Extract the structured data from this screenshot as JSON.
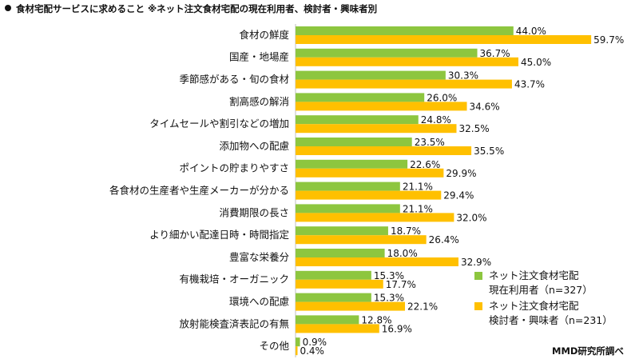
{
  "title": "食材宅配サービスに求めること ※ネット注文食材宅配の現在利用者、検討者・興味者別",
  "credit": "MMD研究所調べ",
  "legend": {
    "current": {
      "line1": "ネット注文食材宅配",
      "line2": "現在利用者（n=327）"
    },
    "considering": {
      "line1": "ネット注文食材宅配",
      "line2": "検討者・興味者（n=231）"
    }
  },
  "colors": {
    "current": "#8DC63F",
    "considering": "#FFC000"
  },
  "chart_data": {
    "type": "bar",
    "orientation": "horizontal",
    "categories": [
      "食材の鮮度",
      "国産・地場産",
      "季節感がある・旬の食材",
      "割高感の解消",
      "タイムセールや割引などの増加",
      "添加物への配慮",
      "ポイントの貯まりやすさ",
      "各食材の生産者や生産メーカーが分かる",
      "消費期限の長さ",
      "より細かい配達日時・時間指定",
      "豊富な栄養分",
      "有機栽培・オーガニック",
      "環境への配慮",
      "放射能検査済表記の有無",
      "その他"
    ],
    "series": [
      {
        "name": "ネット注文食材宅配 現在利用者（n=327）",
        "values": [
          44.0,
          36.7,
          30.3,
          26.0,
          24.8,
          23.5,
          22.6,
          21.1,
          21.1,
          18.7,
          18.0,
          15.3,
          15.3,
          12.8,
          0.9
        ]
      },
      {
        "name": "ネット注文食材宅配 検討者・興味者（n=231）",
        "values": [
          59.7,
          45.0,
          43.7,
          34.6,
          32.5,
          35.5,
          29.9,
          29.4,
          32.0,
          26.4,
          32.9,
          17.7,
          22.1,
          16.9,
          0.4
        ]
      }
    ],
    "value_format": "%.1f%",
    "xlim": [
      0,
      60
    ]
  }
}
